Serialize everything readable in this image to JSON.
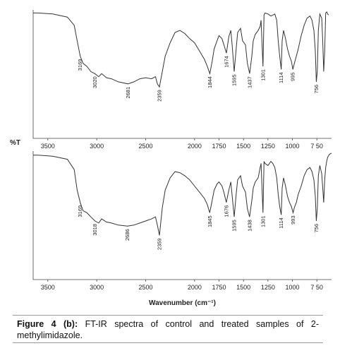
{
  "chart_data": [
    {
      "type": "line",
      "ylabel": "%T",
      "color": "#333333",
      "x": [
        3650,
        3600,
        3450,
        3300,
        3230,
        3200,
        3169,
        3140,
        3100,
        3060,
        3020,
        2980,
        2950,
        2900,
        2850,
        2780,
        2681,
        2620,
        2560,
        2500,
        2440,
        2400,
        2380,
        2359,
        2330,
        2300,
        2250,
        2200,
        2150,
        2100,
        2050,
        2000,
        1950,
        1900,
        1870,
        1844,
        1820,
        1800,
        1770,
        1750,
        1720,
        1700,
        1674,
        1650,
        1630,
        1615,
        1595,
        1575,
        1560,
        1530,
        1510,
        1480,
        1460,
        1437,
        1415,
        1400,
        1380,
        1350,
        1330,
        1320,
        1301,
        1290,
        1280,
        1250,
        1220,
        1200,
        1180,
        1160,
        1145,
        1130,
        1114,
        1105,
        1090,
        1070,
        1050,
        1030,
        1010,
        995,
        980,
        960,
        940,
        910,
        880,
        850,
        820,
        800,
        780,
        766,
        756,
        746,
        735,
        720,
        710,
        700,
        690,
        680,
        670,
        660,
        650,
        640,
        630
      ],
      "values": [
        97,
        97,
        96,
        93,
        85,
        70,
        55,
        48,
        45,
        40,
        38,
        35,
        38,
        34,
        33,
        30,
        28,
        30,
        33,
        34,
        33,
        35,
        28,
        25,
        40,
        55,
        68,
        78,
        80,
        77,
        72,
        68,
        60,
        52,
        45,
        38,
        50,
        62,
        70,
        75,
        72,
        66,
        58,
        74,
        80,
        65,
        40,
        62,
        78,
        82,
        70,
        66,
        48,
        38,
        55,
        70,
        76,
        80,
        84,
        90,
        45,
        95,
        97,
        96,
        94,
        95,
        96,
        90,
        70,
        55,
        42,
        70,
        80,
        72,
        62,
        55,
        50,
        42,
        48,
        55,
        62,
        75,
        85,
        92,
        94,
        90,
        80,
        60,
        30,
        40,
        80,
        96,
        94,
        92,
        70,
        40,
        60,
        97,
        98,
        96,
        95
      ],
      "xlim": [
        3650,
        600
      ],
      "ylim": [
        -25,
        100
      ],
      "xticks": [
        3500,
        3000,
        2500,
        2000,
        1750,
        1500,
        1250,
        1000,
        {
          "value": 750,
          "label": "7 50"
        }
      ],
      "peak_labels": [
        3169,
        3020,
        2681,
        2359,
        1844,
        1674,
        1595,
        1437,
        1301,
        1114,
        995,
        756
      ]
    },
    {
      "type": "line",
      "xlabel": "Wavenumber (cm⁻¹)",
      "color": "#333333",
      "x": [
        3650,
        3600,
        3450,
        3300,
        3230,
        3200,
        3169,
        3140,
        3100,
        3060,
        3018,
        2980,
        2950,
        2900,
        2850,
        2780,
        2686,
        2620,
        2560,
        2500,
        2440,
        2400,
        2380,
        2359,
        2330,
        2300,
        2250,
        2200,
        2150,
        2100,
        2050,
        2000,
        1950,
        1900,
        1870,
        1845,
        1820,
        1800,
        1770,
        1750,
        1720,
        1700,
        1676,
        1650,
        1630,
        1615,
        1595,
        1575,
        1560,
        1530,
        1510,
        1480,
        1460,
        1438,
        1415,
        1400,
        1380,
        1350,
        1330,
        1320,
        1301,
        1290,
        1280,
        1250,
        1220,
        1200,
        1180,
        1160,
        1145,
        1130,
        1114,
        1105,
        1090,
        1070,
        1050,
        1030,
        1010,
        993,
        980,
        960,
        940,
        910,
        880,
        850,
        820,
        800,
        780,
        766,
        756,
        746,
        735,
        720,
        710,
        700,
        690,
        680,
        670,
        660,
        650,
        640,
        620,
        600
      ],
      "values": [
        96,
        96,
        95,
        92,
        82,
        62,
        50,
        42,
        40,
        36,
        32,
        30,
        34,
        31,
        30,
        28,
        27,
        28,
        30,
        32,
        34,
        36,
        28,
        18,
        45,
        62,
        74,
        80,
        79,
        76,
        72,
        66,
        60,
        54,
        48,
        40,
        52,
        62,
        68,
        70,
        66,
        60,
        50,
        62,
        70,
        56,
        36,
        58,
        72,
        76,
        66,
        60,
        44,
        36,
        52,
        64,
        70,
        74,
        84,
        88,
        40,
        90,
        88,
        86,
        90,
        88,
        84,
        74,
        58,
        46,
        38,
        64,
        74,
        66,
        56,
        50,
        46,
        40,
        45,
        50,
        58,
        66,
        76,
        82,
        84,
        80,
        72,
        56,
        32,
        44,
        76,
        86,
        82,
        78,
        64,
        50,
        72,
        84,
        90,
        94,
        97,
        98
      ],
      "xlim": [
        3650,
        600
      ],
      "ylim": [
        -25,
        100
      ],
      "xticks": [
        3500,
        3000,
        2500,
        2000,
        1750,
        1500,
        1250,
        1000,
        {
          "value": 750,
          "label": "7 50"
        }
      ],
      "peak_labels": [
        3169,
        3018,
        2686,
        2359,
        1845,
        1676,
        1595,
        1438,
        1301,
        1114,
        993,
        756
      ]
    }
  ],
  "caption": {
    "label": "Figure 4 (b):",
    "text": "FT-IR spectra of control and treated samples of 2-methylimidazole."
  }
}
